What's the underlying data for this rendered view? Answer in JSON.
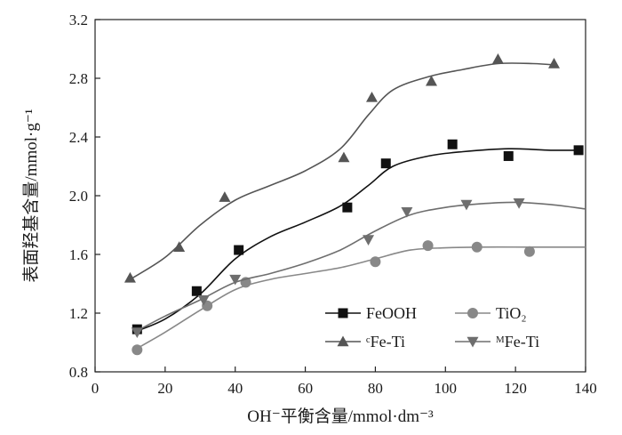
{
  "chart_data": {
    "type": "scatter",
    "xlabel": "OH⁻平衡含量/mmol·dm⁻³",
    "ylabel": "表面羟基含量/mmol·g⁻¹",
    "xlim": [
      0,
      140
    ],
    "ylim": [
      0.8,
      3.2
    ],
    "x_ticks": [
      "0",
      "20",
      "40",
      "60",
      "80",
      "100",
      "120",
      "140"
    ],
    "y_ticks": [
      "0.8",
      "1.2",
      "1.6",
      "2.0",
      "2.4",
      "2.8",
      "3.2"
    ],
    "grid": false,
    "legend_position": "bottom-right",
    "series": [
      {
        "name": "FeOOH",
        "marker": "square",
        "color": "#111111",
        "points": [
          [
            12,
            1.09
          ],
          [
            29,
            1.35
          ],
          [
            41,
            1.63
          ],
          [
            72,
            1.92
          ],
          [
            83,
            2.22
          ],
          [
            102,
            2.35
          ],
          [
            118,
            2.27
          ],
          [
            138,
            2.31
          ]
        ],
        "fit": [
          [
            11,
            1.07
          ],
          [
            20,
            1.16
          ],
          [
            30,
            1.33
          ],
          [
            40,
            1.57
          ],
          [
            50,
            1.72
          ],
          [
            60,
            1.82
          ],
          [
            70,
            1.93
          ],
          [
            78,
            2.07
          ],
          [
            85,
            2.2
          ],
          [
            95,
            2.27
          ],
          [
            105,
            2.3
          ],
          [
            118,
            2.32
          ],
          [
            130,
            2.31
          ],
          [
            138,
            2.31
          ]
        ]
      },
      {
        "name": "TiO₂",
        "marker": "circle",
        "color": "#888888",
        "points": [
          [
            12,
            0.95
          ],
          [
            32,
            1.25
          ],
          [
            43,
            1.41
          ],
          [
            80,
            1.55
          ],
          [
            95,
            1.66
          ],
          [
            109,
            1.65
          ],
          [
            124,
            1.62
          ]
        ],
        "fit": [
          [
            12,
            0.96
          ],
          [
            20,
            1.07
          ],
          [
            30,
            1.22
          ],
          [
            40,
            1.36
          ],
          [
            50,
            1.43
          ],
          [
            60,
            1.47
          ],
          [
            70,
            1.51
          ],
          [
            80,
            1.57
          ],
          [
            90,
            1.63
          ],
          [
            100,
            1.645
          ],
          [
            110,
            1.65
          ],
          [
            125,
            1.65
          ],
          [
            140,
            1.65
          ]
        ]
      },
      {
        "name": "ᶜFe-Ti",
        "marker": "triangle-up",
        "color": "#555555",
        "points": [
          [
            10,
            1.44
          ],
          [
            24,
            1.65
          ],
          [
            37,
            1.99
          ],
          [
            71,
            2.26
          ],
          [
            79,
            2.67
          ],
          [
            96,
            2.78
          ],
          [
            115,
            2.93
          ],
          [
            131,
            2.9
          ]
        ],
        "fit": [
          [
            10,
            1.43
          ],
          [
            20,
            1.58
          ],
          [
            30,
            1.8
          ],
          [
            40,
            1.97
          ],
          [
            50,
            2.07
          ],
          [
            60,
            2.17
          ],
          [
            70,
            2.32
          ],
          [
            78,
            2.55
          ],
          [
            85,
            2.72
          ],
          [
            95,
            2.81
          ],
          [
            105,
            2.86
          ],
          [
            115,
            2.9
          ],
          [
            125,
            2.9
          ],
          [
            132,
            2.89
          ]
        ]
      },
      {
        "name": "ᴹFe-Ti",
        "marker": "triangle-down",
        "color": "#6e6e6e",
        "points": [
          [
            12,
            1.07
          ],
          [
            31,
            1.29
          ],
          [
            40,
            1.43
          ],
          [
            78,
            1.7
          ],
          [
            89,
            1.89
          ],
          [
            106,
            1.94
          ],
          [
            121,
            1.95
          ]
        ],
        "fit": [
          [
            12,
            1.08
          ],
          [
            20,
            1.18
          ],
          [
            30,
            1.29
          ],
          [
            40,
            1.41
          ],
          [
            50,
            1.47
          ],
          [
            60,
            1.54
          ],
          [
            70,
            1.63
          ],
          [
            80,
            1.76
          ],
          [
            90,
            1.87
          ],
          [
            100,
            1.92
          ],
          [
            110,
            1.945
          ],
          [
            120,
            1.955
          ],
          [
            130,
            1.94
          ],
          [
            140,
            1.91
          ]
        ]
      }
    ]
  }
}
